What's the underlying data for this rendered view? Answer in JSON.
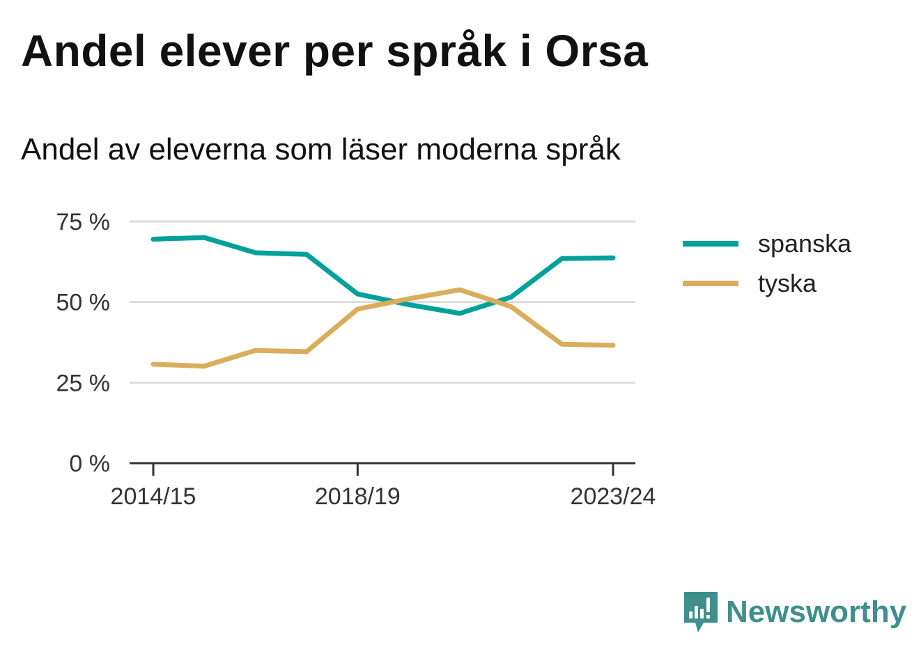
{
  "header": {
    "title": "Andel elever per språk i Orsa",
    "subtitle": "Andel av eleverna som läser moderna språk"
  },
  "brand": {
    "name": "Newsworthy",
    "icon": "newsworthy-logo-icon",
    "color": "#3f8f8c"
  },
  "chart_data": {
    "type": "line",
    "title": "Andel elever per språk i Orsa",
    "subtitle": "Andel av eleverna som läser moderna språk",
    "xlabel": "",
    "ylabel": "",
    "x": [
      "2014/15",
      "2015/16",
      "2016/17",
      "2017/18",
      "2018/19",
      "2019/20",
      "2020/21",
      "2021/22",
      "2022/23",
      "2023/24"
    ],
    "x_tick_labels": [
      "2014/15",
      "2018/19",
      "2023/24"
    ],
    "y_ticks": [
      0,
      25,
      50,
      75
    ],
    "y_tick_labels": [
      "0 %",
      "25 %",
      "50 %",
      "75 %"
    ],
    "ylim": [
      0,
      75
    ],
    "grid": true,
    "legend_position": "right",
    "series": [
      {
        "name": "spanska",
        "color": "#00a19a",
        "values": [
          69.5,
          70.0,
          65.3,
          64.8,
          52.5,
          49.2,
          46.5,
          51.5,
          63.5,
          63.7
        ]
      },
      {
        "name": "tyska",
        "color": "#d9ad5b",
        "values": [
          30.7,
          30.1,
          35.0,
          34.6,
          47.8,
          51.0,
          53.8,
          48.6,
          36.9,
          36.6
        ]
      }
    ]
  }
}
